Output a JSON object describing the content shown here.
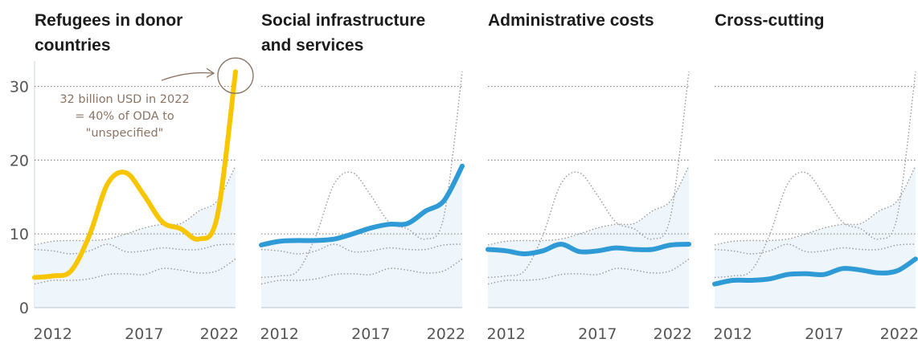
{
  "chart_data": [
    {
      "type": "line",
      "title": "Refugees in donor countries",
      "title_lines": [
        "Refugees in donor",
        "countries"
      ],
      "highlight": true,
      "color": "#f7c600",
      "x": [
        2011,
        2012,
        2013,
        2014,
        2015,
        2016,
        2017,
        2018,
        2019,
        2020,
        2021,
        2022
      ],
      "values": [
        4.1,
        4.3,
        5.0,
        9.8,
        16.8,
        18.3,
        15.2,
        11.6,
        10.7,
        9.3,
        12.4,
        32.0
      ],
      "annotation": {
        "lines": [
          "32 billion USD in 2022",
          "= 40% of ODA to",
          "\"unspecified\""
        ],
        "point_x": 2022,
        "point_y": 32.0
      }
    },
    {
      "type": "line",
      "title": "Social infrastructure and services",
      "title_lines": [
        "Social infrastructure",
        "and services"
      ],
      "highlight": true,
      "color": "#2e9ad6",
      "x": [
        2011,
        2012,
        2013,
        2014,
        2015,
        2016,
        2017,
        2018,
        2019,
        2020,
        2021,
        2022
      ],
      "values": [
        8.5,
        9.0,
        9.1,
        9.1,
        9.3,
        10.0,
        10.8,
        11.3,
        11.4,
        13.1,
        14.5,
        19.2
      ]
    },
    {
      "type": "line",
      "title": "Administrative costs",
      "title_lines": [
        "Administrative costs"
      ],
      "highlight": true,
      "color": "#2e9ad6",
      "x": [
        2011,
        2012,
        2013,
        2014,
        2015,
        2016,
        2017,
        2018,
        2019,
        2020,
        2021,
        2022
      ],
      "values": [
        7.9,
        7.7,
        7.3,
        7.7,
        8.6,
        7.6,
        7.7,
        8.1,
        7.9,
        7.9,
        8.5,
        8.6
      ]
    },
    {
      "type": "line",
      "title": "Cross-cutting",
      "title_lines": [
        "Cross-cutting"
      ],
      "highlight": true,
      "color": "#2e9ad6",
      "x": [
        2011,
        2012,
        2013,
        2014,
        2015,
        2016,
        2017,
        2018,
        2019,
        2020,
        2021,
        2022
      ],
      "values": [
        3.2,
        3.7,
        3.7,
        3.9,
        4.5,
        4.6,
        4.5,
        5.3,
        5.1,
        4.7,
        5.0,
        6.6
      ]
    }
  ],
  "shared_axes": {
    "xlim": [
      2011,
      2022
    ],
    "x_ticks": [
      2012,
      2017,
      2022
    ],
    "ylim": [
      0,
      33
    ],
    "y_ticks": [
      0,
      10,
      20,
      30
    ],
    "grid": "horizontal dotted",
    "background_lines": "other panels' series shown as dotted grey lines"
  },
  "colors": {
    "highlight_yellow": "#f7c600",
    "highlight_blue": "#2e9ad6",
    "context_line": "#9a9a9a",
    "area_fill": "#eef5fb",
    "annotation": "#8a7464"
  }
}
